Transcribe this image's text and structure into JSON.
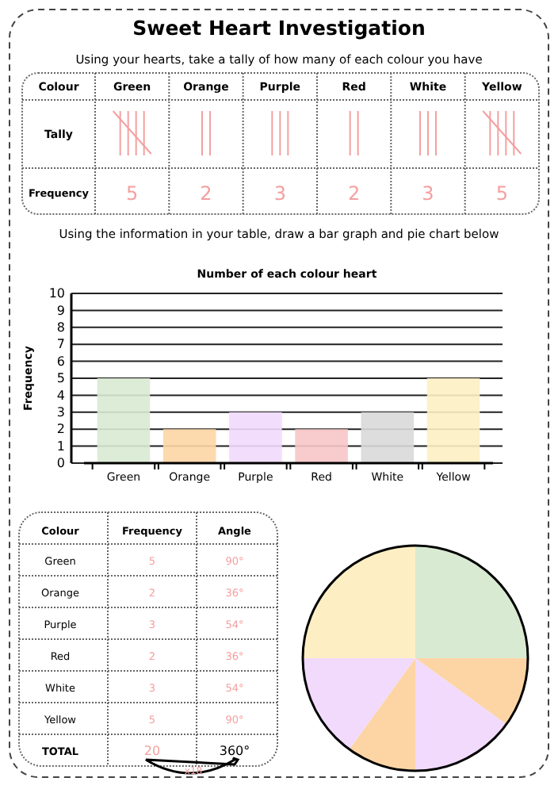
{
  "chart_data": [
    {
      "type": "other",
      "title": "Sweet Heart Investigation",
      "subtitle": "Using your hearts, take a tally of how many of each colour you have",
      "categories": [
        "Green",
        "Orange",
        "Purple",
        "Red",
        "White",
        "Yellow"
      ],
      "values": [
        5,
        2,
        3,
        2,
        3,
        5
      ],
      "data_labels": true,
      "annotations": [
        "Colour",
        "Tally",
        "Frequency",
        "Using the information in your table, draw a bar graph and pie chart below"
      ]
    },
    {
      "type": "bar",
      "title": "Number of each colour heart",
      "ylabel": "Frequency",
      "categories": [
        "Green",
        "Orange",
        "Purple",
        "Red",
        "White",
        "Yellow"
      ],
      "values": [
        5,
        2,
        3,
        2,
        3,
        5
      ],
      "colors": [
        "#d9ead3",
        "#fdd5a5",
        "#f1dafc",
        "#f7c6c6",
        "#d9d9d9",
        "#fdefc3"
      ],
      "ylim": [
        0,
        10
      ],
      "yticks": [
        0,
        1,
        2,
        3,
        4,
        5,
        6,
        7,
        8,
        9,
        10
      ],
      "grid": "y"
    },
    {
      "type": "other",
      "data_labels": true,
      "categories": [
        "Green",
        "Orange",
        "Purple",
        "Red",
        "White",
        "Yellow"
      ],
      "series": [
        {
          "name": "Frequency",
          "values": [
            5,
            2,
            3,
            2,
            3,
            5
          ]
        },
        {
          "name": "Angle",
          "values": [
            90,
            36,
            54,
            36,
            54,
            90
          ],
          "value_labels": [
            "90°",
            "36°",
            "54°",
            "36°",
            "54°",
            "90°"
          ]
        }
      ],
      "annotations": [
        "Colour",
        "TOTAL",
        "20",
        "360°",
        "x18"
      ]
    },
    {
      "type": "pie",
      "categories": [
        null,
        null,
        null,
        null,
        null,
        null
      ],
      "values": [
        25,
        10,
        15,
        10,
        15,
        25
      ],
      "colors": [
        "#d9ead3",
        "#fdd5a5",
        "#f1dafc",
        "#fdd5a5",
        "#f1dafc",
        "#fdefc3"
      ]
    }
  ]
}
